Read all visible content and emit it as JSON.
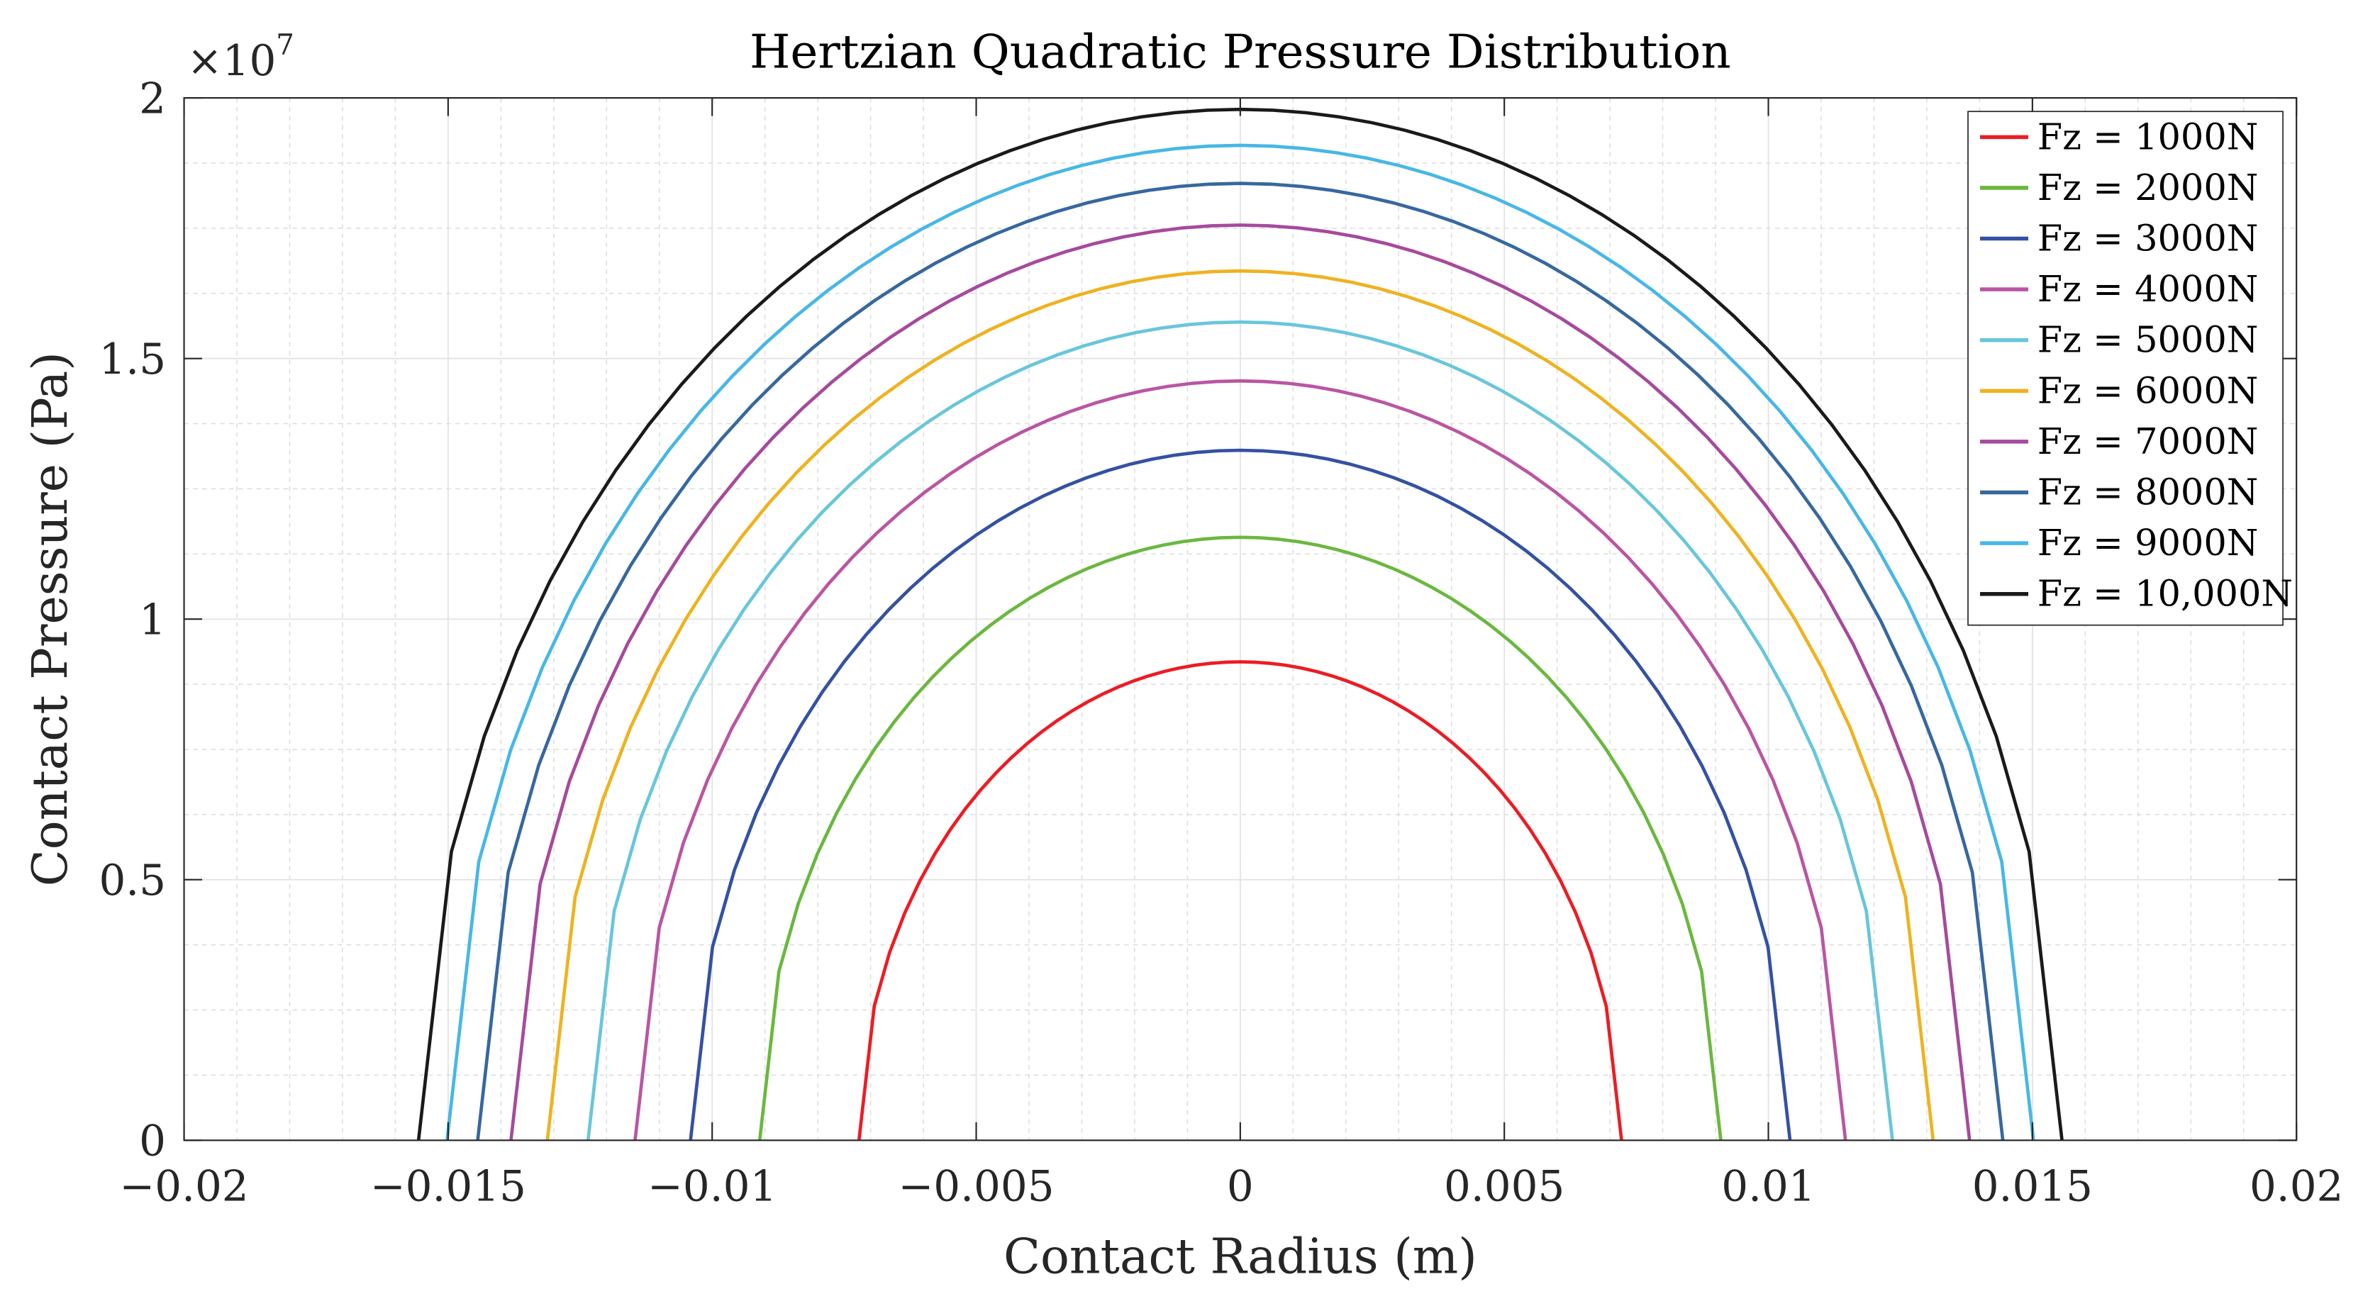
{
  "chart_data": {
    "type": "line",
    "title": "Hertzian Quadratic Pressure Distribution",
    "xlabel": "Contact Radius (m)",
    "ylabel": "Contact Pressure (Pa)",
    "y_exponent_label": "×10",
    "y_exponent": "7",
    "xlim": [
      -0.02,
      0.02
    ],
    "ylim": [
      0,
      20000000
    ],
    "xticks": [
      -0.02,
      -0.015,
      -0.01,
      -0.005,
      0,
      0.005,
      0.01,
      0.015,
      0.02
    ],
    "xtick_labels": [
      "−0.02",
      "−0.015",
      "−0.01",
      "−0.005",
      "0",
      "0.005",
      "0.01",
      "0.015",
      "0.02"
    ],
    "yticks": [
      0,
      5000000,
      10000000,
      15000000,
      20000000
    ],
    "ytick_labels": [
      "0",
      "0.5",
      "1",
      "1.5",
      "2"
    ],
    "grid": true,
    "minor_grid": true,
    "legend_position": "top-right",
    "curve_model": "p(r) = p0 * sqrt(1 - (r/a)^2), sampled with 50 intervals over [-a, a]",
    "series": [
      {
        "name": "Fz = 1000N",
        "force": 1000,
        "contact_radius": 0.00722,
        "peak_pressure": 9180000,
        "color": "#ec1c24"
      },
      {
        "name": "Fz = 2000N",
        "force": 2000,
        "contact_radius": 0.0091,
        "peak_pressure": 11570000,
        "color": "#6ab83f"
      },
      {
        "name": "Fz = 3000N",
        "force": 3000,
        "contact_radius": 0.01041,
        "peak_pressure": 13240000,
        "color": "#3451a3"
      },
      {
        "name": "Fz = 4000N",
        "force": 4000,
        "contact_radius": 0.01146,
        "peak_pressure": 14570000,
        "color": "#ba55a3"
      },
      {
        "name": "Fz = 5000N",
        "force": 5000,
        "contact_radius": 0.01235,
        "peak_pressure": 15700000,
        "color": "#68c6db"
      },
      {
        "name": "Fz = 6000N",
        "force": 6000,
        "contact_radius": 0.01312,
        "peak_pressure": 16680000,
        "color": "#efb21f"
      },
      {
        "name": "Fz = 7000N",
        "force": 7000,
        "contact_radius": 0.01381,
        "peak_pressure": 17560000,
        "color": "#a64a9d"
      },
      {
        "name": "Fz = 8000N",
        "force": 8000,
        "contact_radius": 0.01444,
        "peak_pressure": 18360000,
        "color": "#36689f"
      },
      {
        "name": "Fz = 9000N",
        "force": 9000,
        "contact_radius": 0.01502,
        "peak_pressure": 19090000,
        "color": "#47b7e7"
      },
      {
        "name": "Fz = 10,000N",
        "force": 10000,
        "contact_radius": 0.01556,
        "peak_pressure": 19780000,
        "color": "#1a1a1a"
      }
    ]
  }
}
